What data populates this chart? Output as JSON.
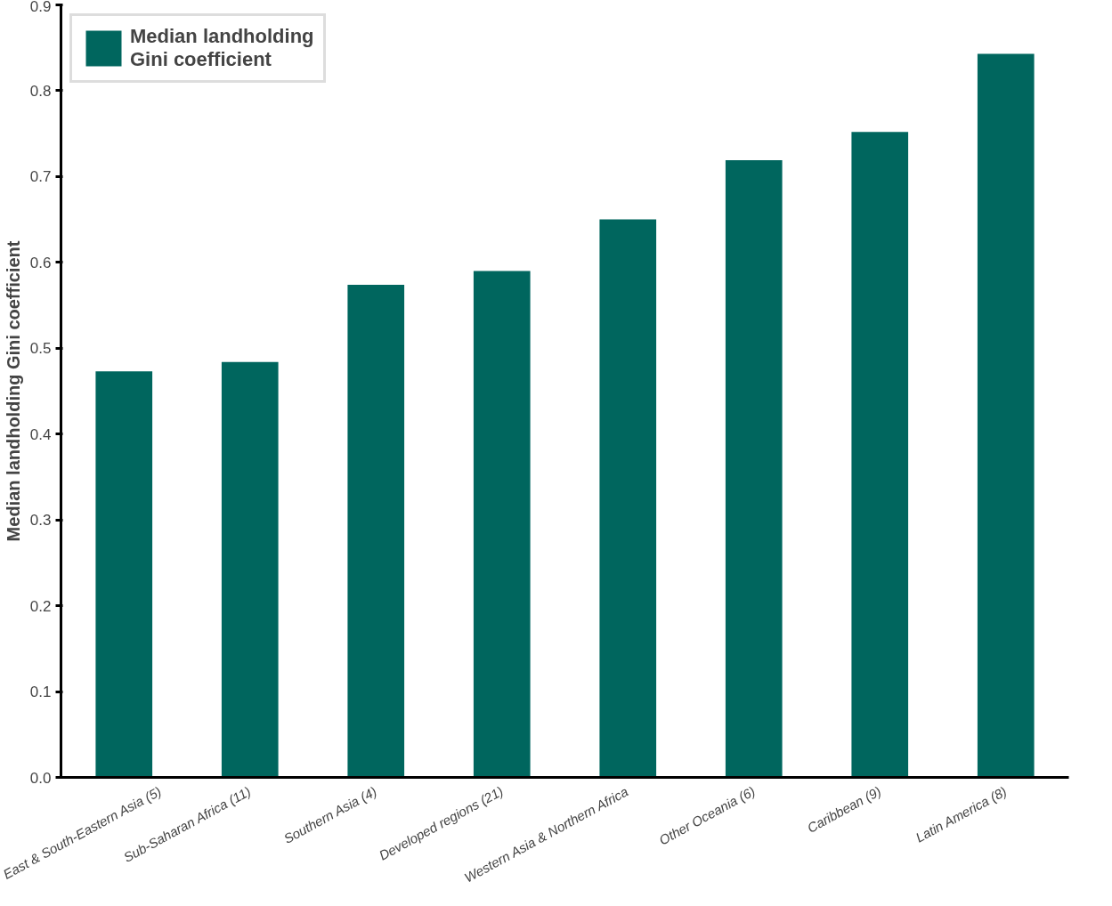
{
  "chart_data": {
    "type": "bar",
    "ylabel": "Median landholding Gini coefficient",
    "categories": [
      "East & South-Eastern Asia (5)",
      "Sub-Saharan Africa (11)",
      "Southern Asia (4)",
      "Developed regions (21)",
      "Western Asia & Northern Africa",
      "Other Oceania (6)",
      "Caribbean (9)",
      "Latin America (8)"
    ],
    "series": [
      {
        "name": "Median landholding\nGini coefficient",
        "color": "#00665e",
        "values": [
          0.473,
          0.484,
          0.574,
          0.59,
          0.65,
          0.719,
          0.752,
          0.843
        ]
      }
    ],
    "ylim": [
      0,
      0.9
    ],
    "yticks": [
      {
        "value": 0,
        "label": "0.0"
      },
      0.1,
      0.2,
      0.3,
      0.4,
      0.5,
      0.6,
      0.7,
      0.8,
      0.9
    ],
    "grid": false,
    "legend": "top left"
  }
}
